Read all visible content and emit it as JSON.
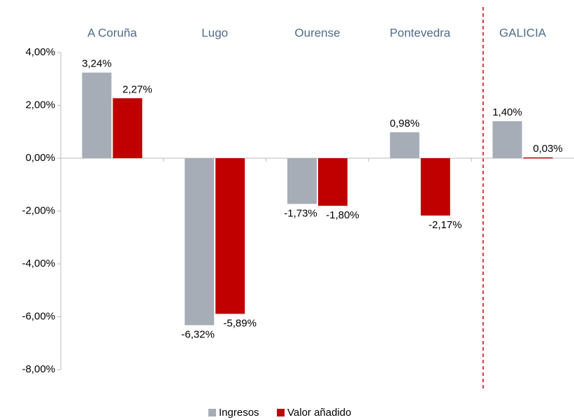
{
  "chart_data": {
    "type": "bar",
    "categories": [
      "A Coruña",
      "Lugo",
      "Ourense",
      "Pontevedra",
      "GALICIA"
    ],
    "series": [
      {
        "name": "Ingresos",
        "color": "#a6adb7",
        "values": [
          3.24,
          -6.32,
          -1.73,
          0.98,
          1.4
        ],
        "value_labels": [
          "3,24%",
          "-6,32%",
          "-1,73%",
          "0,98%",
          "1,40%"
        ]
      },
      {
        "name": "Valor añadido",
        "color": "#c00000",
        "values": [
          2.27,
          -5.89,
          -1.8,
          -2.17,
          0.03
        ],
        "value_labels": [
          "2,27%",
          "-5,89%",
          "-1,80%",
          "-2,17%",
          "0,03%"
        ]
      }
    ],
    "ylim": [
      -8,
      4
    ],
    "yticks": [
      {
        "value": 4,
        "label": "4,00%"
      },
      {
        "value": 2,
        "label": "2,00%"
      },
      {
        "value": 0,
        "label": "0,00%"
      },
      {
        "value": -2,
        "label": "-2,00%"
      },
      {
        "value": -4,
        "label": "-4,00%"
      },
      {
        "value": -6,
        "label": "-6,00%"
      },
      {
        "value": -8,
        "label": "-8,00%"
      }
    ],
    "grid": false,
    "legend": "bottom"
  }
}
